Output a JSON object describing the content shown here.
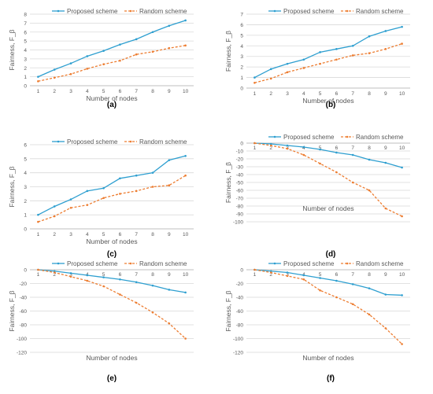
{
  "figure": {
    "panel_labels": [
      "(a)",
      "(b)",
      "(c)",
      "(d)",
      "(e)",
      "(f)"
    ]
  },
  "colors": {
    "proposed": "#2E9FD0",
    "random": "#ED7D31",
    "grid": "#D9D9D9",
    "axis_text": "#595959"
  },
  "chart_data": [
    {
      "type": "line",
      "panel": "(a)",
      "ylabel": "Fairness, F_β",
      "xlabel": "Number of nodes",
      "x": [
        1,
        2,
        3,
        4,
        5,
        6,
        7,
        8,
        9,
        10
      ],
      "ylim": [
        0,
        8
      ],
      "yticks": [
        0,
        1,
        2,
        3,
        4,
        5,
        6,
        7,
        8
      ],
      "legend": "top",
      "grid": true,
      "series": [
        {
          "name": "Proposed scheme",
          "values": [
            1.0,
            1.8,
            2.5,
            3.3,
            3.9,
            4.6,
            5.2,
            6.0,
            6.7,
            7.3
          ]
        },
        {
          "name": "Random scheme",
          "values": [
            0.5,
            0.9,
            1.3,
            1.9,
            2.4,
            2.8,
            3.5,
            3.8,
            4.2,
            4.5
          ]
        }
      ]
    },
    {
      "type": "line",
      "panel": "(b)",
      "ylabel": "Fairness, F_β",
      "xlabel": "Number of nodes",
      "x": [
        1,
        2,
        3,
        4,
        5,
        6,
        7,
        8,
        9,
        10
      ],
      "ylim": [
        0,
        7
      ],
      "yticks": [
        0,
        1,
        2,
        3,
        4,
        5,
        6,
        7
      ],
      "legend": "top",
      "grid": true,
      "series": [
        {
          "name": "Proposed scheme",
          "values": [
            1.0,
            1.8,
            2.3,
            2.7,
            3.4,
            3.7,
            4.0,
            4.9,
            5.4,
            5.8
          ]
        },
        {
          "name": "Random scheme",
          "values": [
            0.5,
            0.9,
            1.5,
            1.9,
            2.3,
            2.7,
            3.1,
            3.3,
            3.7,
            4.2
          ]
        }
      ]
    },
    {
      "type": "line",
      "panel": "(c)",
      "ylabel": "Fairness, F_β",
      "xlabel": "Number of nodes",
      "x": [
        1,
        2,
        3,
        4,
        5,
        6,
        7,
        8,
        9,
        10
      ],
      "ylim": [
        0,
        6
      ],
      "yticks": [
        0,
        1,
        2,
        3,
        4,
        5,
        6
      ],
      "legend": "top",
      "grid": true,
      "series": [
        {
          "name": "Proposed scheme",
          "values": [
            1.0,
            1.6,
            2.1,
            2.7,
            2.9,
            3.6,
            3.8,
            4.0,
            4.9,
            5.2
          ]
        },
        {
          "name": "Random scheme",
          "values": [
            0.5,
            0.9,
            1.5,
            1.7,
            2.2,
            2.5,
            2.7,
            3.0,
            3.1,
            3.8
          ]
        }
      ]
    },
    {
      "type": "line",
      "panel": "(d)",
      "ylabel": "Fairness, F_β",
      "xlabel": "Number of nodes",
      "x": [
        1,
        2,
        3,
        4,
        5,
        6,
        7,
        8,
        9,
        10
      ],
      "ylim": [
        -100,
        0
      ],
      "yticks": [
        0,
        -10,
        -20,
        -30,
        -40,
        -50,
        -60,
        -70,
        -80,
        -90,
        -100
      ],
      "legend": "top",
      "grid": true,
      "series": [
        {
          "name": "Proposed scheme",
          "values": [
            0,
            -1,
            -3,
            -5,
            -8,
            -12,
            -15,
            -21,
            -25,
            -31
          ]
        },
        {
          "name": "Random scheme",
          "values": [
            0,
            -3,
            -7,
            -15,
            -26,
            -37,
            -50,
            -60,
            -83,
            -93
          ]
        }
      ]
    },
    {
      "type": "line",
      "panel": "(e)",
      "ylabel": "Fairness, F_β",
      "xlabel": "Number of nodes",
      "x": [
        1,
        2,
        3,
        4,
        5,
        6,
        7,
        8,
        9,
        10
      ],
      "ylim": [
        -120,
        0
      ],
      "yticks": [
        0,
        -20,
        -40,
        -60,
        -80,
        -100,
        -120
      ],
      "legend": "top",
      "grid": true,
      "series": [
        {
          "name": "Proposed scheme",
          "values": [
            0,
            -2,
            -5,
            -8,
            -11,
            -14,
            -18,
            -23,
            -29,
            -33
          ]
        },
        {
          "name": "Random scheme",
          "values": [
            0,
            -4,
            -10,
            -16,
            -24,
            -36,
            -48,
            -62,
            -78,
            -100
          ]
        }
      ]
    },
    {
      "type": "line",
      "panel": "(f)",
      "ylabel": "Fairness, F_β",
      "xlabel": "Number of nodes",
      "x": [
        1,
        2,
        3,
        4,
        5,
        6,
        7,
        8,
        9,
        10
      ],
      "ylim": [
        -120,
        0
      ],
      "yticks": [
        0,
        -20,
        -40,
        -60,
        -80,
        -100,
        -120
      ],
      "legend": "top",
      "grid": true,
      "series": [
        {
          "name": "Proposed scheme",
          "values": [
            0,
            -2,
            -4,
            -8,
            -12,
            -16,
            -21,
            -27,
            -36,
            -37
          ]
        },
        {
          "name": "Random scheme",
          "values": [
            0,
            -4,
            -9,
            -14,
            -30,
            -40,
            -50,
            -65,
            -85,
            -108
          ]
        }
      ]
    }
  ]
}
